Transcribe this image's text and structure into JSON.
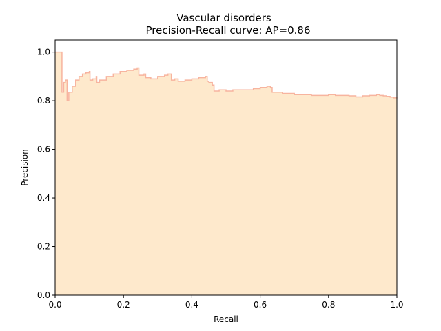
{
  "chart_data": {
    "type": "area",
    "title": "Vascular disorders",
    "subtitle": "Precision-Recall curve: AP=0.86",
    "xlabel": "Recall",
    "ylabel": "Precision",
    "xlim": [
      0.0,
      1.0
    ],
    "ylim": [
      0.0,
      1.05
    ],
    "grid": false,
    "step": "post",
    "xticks": [
      "0.0",
      "0.2",
      "0.4",
      "0.6",
      "0.8",
      "1.0"
    ],
    "yticks": [
      "0.0",
      "0.2",
      "0.4",
      "0.6",
      "0.8",
      "1.0"
    ],
    "x": [
      0.0,
      0.018,
      0.02,
      0.025,
      0.03,
      0.035,
      0.04,
      0.05,
      0.06,
      0.07,
      0.08,
      0.09,
      0.1,
      0.102,
      0.11,
      0.12,
      0.122,
      0.13,
      0.15,
      0.17,
      0.19,
      0.21,
      0.23,
      0.24,
      0.245,
      0.26,
      0.265,
      0.28,
      0.3,
      0.32,
      0.33,
      0.34,
      0.35,
      0.36,
      0.38,
      0.4,
      0.42,
      0.44,
      0.445,
      0.45,
      0.46,
      0.465,
      0.48,
      0.5,
      0.52,
      0.55,
      0.58,
      0.6,
      0.62,
      0.63,
      0.635,
      0.66,
      0.665,
      0.68,
      0.7,
      0.72,
      0.75,
      0.78,
      0.8,
      0.82,
      0.85,
      0.86,
      0.88,
      0.9,
      0.92,
      0.94,
      0.95,
      0.96,
      0.97,
      0.98,
      0.99,
      1.0
    ],
    "y": [
      1.0,
      1.0,
      0.835,
      0.875,
      0.885,
      0.8,
      0.835,
      0.86,
      0.885,
      0.9,
      0.91,
      0.915,
      0.92,
      0.885,
      0.89,
      0.9,
      0.875,
      0.885,
      0.9,
      0.91,
      0.92,
      0.925,
      0.93,
      0.935,
      0.905,
      0.91,
      0.895,
      0.89,
      0.9,
      0.905,
      0.91,
      0.885,
      0.89,
      0.88,
      0.885,
      0.89,
      0.895,
      0.9,
      0.88,
      0.875,
      0.865,
      0.84,
      0.845,
      0.84,
      0.845,
      0.845,
      0.85,
      0.855,
      0.86,
      0.855,
      0.835,
      0.835,
      0.83,
      0.83,
      0.825,
      0.825,
      0.822,
      0.822,
      0.825,
      0.822,
      0.822,
      0.82,
      0.816,
      0.82,
      0.822,
      0.825,
      0.822,
      0.82,
      0.818,
      0.815,
      0.812,
      0.81
    ],
    "colors": {
      "fill": "#fee9cc",
      "line": "#f7b49f"
    }
  }
}
